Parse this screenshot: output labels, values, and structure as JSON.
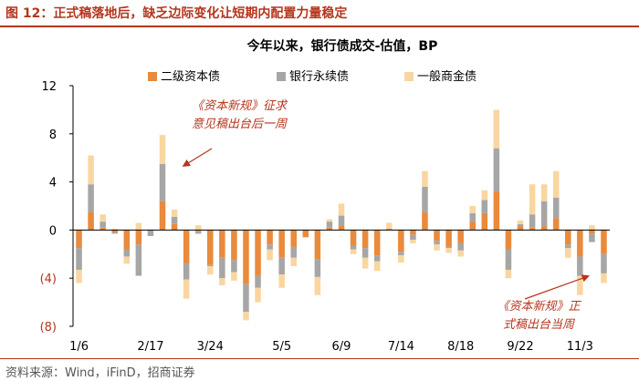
{
  "figure": {
    "title": "图 12：正式稿落地后，缺乏边际变化让短期内配置力量稳定",
    "source": "资料来源：Wind，iFinD，招商证券"
  },
  "colors": {
    "tier2": "#e98a3c",
    "perpetual": "#a6a6a6",
    "general": "#f9d6a1",
    "accent": "#b5351c",
    "axis": "#000000"
  },
  "chart_data": {
    "type": "bar",
    "stacked": true,
    "title": "今年以来，银行债成交-估值，BP",
    "xlabel": "",
    "ylabel": "",
    "ylim": [
      -8,
      12
    ],
    "yticks": [
      -8,
      -4,
      0,
      4,
      8,
      12
    ],
    "ytick_labels": [
      "(8)",
      "(4)",
      "0",
      "4",
      "8",
      "12"
    ],
    "x_tick_labels": [
      "1/6",
      "2/17",
      "3/24",
      "5/5",
      "6/9",
      "7/14",
      "8/18",
      "9/22",
      "11/3"
    ],
    "x_tick_positions": [
      0,
      6,
      11,
      17,
      22,
      27,
      32,
      37,
      42
    ],
    "legend": [
      "二级资本债",
      "银行永续债",
      "一般商金债"
    ],
    "legend_position": "top",
    "series": [
      {
        "name": "二级资本债",
        "values": [
          -1.5,
          1.5,
          0.2,
          -0.2,
          -1.6,
          -1.2,
          0,
          2.4,
          0.5,
          -2.8,
          -0.1,
          -2.9,
          -2.3,
          -2.5,
          -4.5,
          -3.8,
          -1.2,
          -2.3,
          -1.4,
          -0.6,
          -2.4,
          0.2,
          0.4,
          -1.3,
          -1.5,
          -2.1,
          0.1,
          -1.8,
          -0.4,
          1.5,
          -0.9,
          -1.4,
          -1.1,
          0.7,
          1.4,
          3.2,
          -1.6,
          0.3,
          0.2,
          0.3,
          1.0,
          -1.2,
          -2.2,
          -0.3,
          -2.0
        ]
      },
      {
        "name": "银行永续债",
        "values": [
          -1.8,
          2.3,
          0.5,
          -0.1,
          -0.6,
          -2.6,
          -0.5,
          3.1,
          0.6,
          -1.3,
          -0.2,
          -0.1,
          -1.7,
          -1.0,
          -2.3,
          -1.0,
          -0.4,
          -1.4,
          -0.9,
          0,
          -1.5,
          0.5,
          0.8,
          -0.3,
          -0.8,
          -0.5,
          0,
          -0.3,
          -0.4,
          2.1,
          -0.3,
          -0.1,
          -0.6,
          0.7,
          1.1,
          3.6,
          -1.7,
          0.2,
          1.1,
          2.1,
          1.7,
          -0.3,
          -1.6,
          -0.7,
          -1.6
        ]
      },
      {
        "name": "一般商金债",
        "values": [
          -1.1,
          2.4,
          0.6,
          0.1,
          -0.6,
          0.6,
          0,
          2.4,
          0.6,
          -1.6,
          0.4,
          -0.7,
          -0.6,
          -0.7,
          -0.7,
          -1.2,
          -0.9,
          -1.1,
          -0.7,
          0,
          -1.5,
          0.2,
          1.0,
          -0.4,
          -0.9,
          -0.8,
          0.5,
          -0.6,
          -0.3,
          1.3,
          -0.5,
          -0.4,
          -0.5,
          0.6,
          0.8,
          3.2,
          -0.7,
          0.3,
          2.5,
          1.4,
          2.2,
          -0.8,
          -1.6,
          0.4,
          -0.8
        ]
      }
    ],
    "annotations": [
      {
        "text": "《资本新规》征求意见稿出台后一周",
        "lines": [
          "《资本新规》征求",
          "意见稿出台后一周"
        ],
        "points_to_index": 8
      },
      {
        "text": "《资本新规》正式稿出台当周",
        "lines": [
          "《资本新规》正",
          "式稿出台当周"
        ],
        "points_to_index": 43
      }
    ]
  }
}
